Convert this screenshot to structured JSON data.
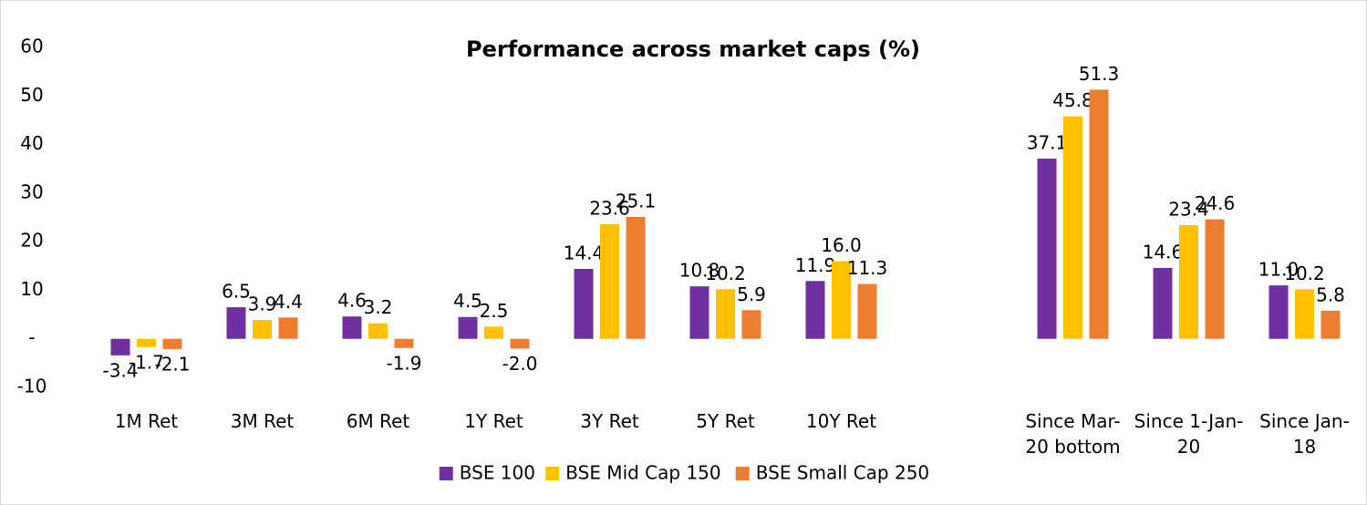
{
  "chart_data": {
    "type": "bar",
    "title": "Performance across market caps (%)",
    "categories": [
      "1M Ret",
      "3M Ret",
      "6M Ret",
      "1Y Ret",
      "3Y Ret",
      "5Y Ret",
      "10Y Ret",
      null,
      "Since Mar-20 bottom",
      "Since 1-Jan-20",
      "Since Jan-18"
    ],
    "series": [
      {
        "name": "BSE 100",
        "color": "#7030a0",
        "values": [
          -3.4,
          6.5,
          4.6,
          4.5,
          14.4,
          10.8,
          11.9,
          null,
          37.1,
          14.6,
          11.0
        ],
        "value_labels": [
          "-3.4",
          "6.5",
          "4.6",
          "4.5",
          "14.4",
          "10.8",
          "11.9",
          null,
          "37.1",
          "14.6",
          "11.0"
        ]
      },
      {
        "name": "BSE Mid Cap 150",
        "color": "#ffc000",
        "values": [
          -1.7,
          3.9,
          3.2,
          2.5,
          23.6,
          10.2,
          16.0,
          null,
          45.8,
          23.4,
          10.2
        ],
        "value_labels": [
          "-1.7",
          "3.9",
          "3.2",
          "2.5",
          "23.6",
          "10.2",
          "16.0",
          null,
          "45.8",
          "23.4",
          "10.2"
        ]
      },
      {
        "name": "BSE Small Cap 250",
        "color": "#ed7d31",
        "values": [
          -2.1,
          4.4,
          -1.9,
          -2.0,
          25.1,
          5.9,
          11.3,
          null,
          51.3,
          24.6,
          5.8
        ],
        "value_labels": [
          "-2.1",
          "4.4",
          "-1.9",
          "-2.0",
          "25.1",
          "5.9",
          "11.3",
          null,
          "51.3",
          "24.6",
          "5.8"
        ]
      }
    ],
    "ylim": [
      -10,
      60
    ],
    "yticks": [
      -10,
      {
        "value": 0,
        "label": "-"
      },
      10,
      20,
      30,
      40,
      50,
      60
    ],
    "grid": false,
    "legend": "bottom"
  }
}
